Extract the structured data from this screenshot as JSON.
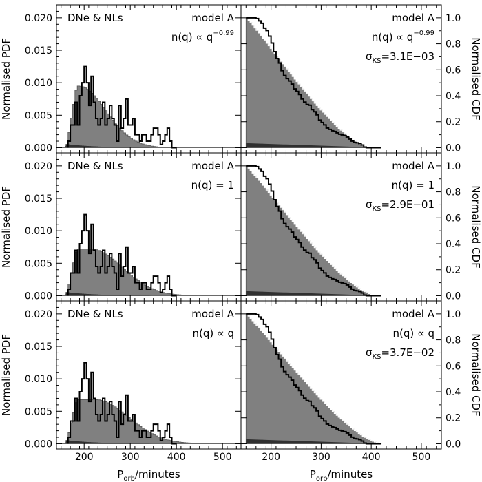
{
  "chart_data": {
    "type": "histogram-grid",
    "x_label_main": "P",
    "x_label_sub": "orb",
    "x_label_rest": "/minutes",
    "xlim": [
      140,
      540
    ],
    "x_ticks": [
      "200",
      "300",
      "400",
      "500"
    ],
    "x_tick_values": [
      200,
      300,
      400,
      500
    ],
    "pdf_ylabel": "Normalised PDF",
    "pdf_ylim": [
      -0.0008,
      0.022
    ],
    "pdf_ticks": [
      "0.000",
      "0.005",
      "0.010",
      "0.015",
      "0.020"
    ],
    "pdf_tick_values": [
      0.0,
      0.005,
      0.01,
      0.015,
      0.02
    ],
    "cdf_ylabel": "Normalised CDF",
    "cdf_ylim": [
      -0.04,
      1.1
    ],
    "cdf_ticks": [
      "0.0",
      "0.2",
      "0.4",
      "0.6",
      "0.8",
      "1.0"
    ],
    "cdf_tick_values": [
      0.0,
      0.2,
      0.4,
      0.6,
      0.8,
      1.0
    ],
    "sample_label": "DNe & NLs",
    "sigma_symbol": "σ",
    "sigma_sub": "KS",
    "observed_pdf": {
      "edges_start": 165,
      "bin_width": 5,
      "values": [
        0.001,
        0.0035,
        0.0035,
        0.007,
        0.0035,
        0.008,
        0.01,
        0.0125,
        0.01,
        0.0065,
        0.011,
        0.007,
        0.0045,
        0.0035,
        0.0045,
        0.007,
        0.0035,
        0.0045,
        0.0065,
        0.0045,
        0.0035,
        0.001,
        0.0065,
        0.003,
        0.0045,
        0.0075,
        0.0035,
        0.0035,
        0.0045,
        0.002,
        0.002,
        0.001,
        0.002,
        0.002,
        0.001,
        0.001,
        0.002,
        0.003,
        0.003,
        0.002,
        0.0005,
        0.001,
        0.002,
        0.003,
        0.001,
        0.0,
        0.0
      ]
    },
    "rows": [
      {
        "model": "model A",
        "nq_text": "n(q) ∝ q",
        "nq_exp": "−0.99",
        "sigma_value": "=3.1E−03",
        "pdf_peak": 0.0095,
        "pdf_center": 188,
        "pdf_width": 95,
        "cdf_model_shift": -12,
        "cdf_obs_shift": 0
      },
      {
        "model": "model A",
        "nq_text": "n(q) = 1",
        "nq_exp": "",
        "sigma_value": "=2.9E−01",
        "pdf_peak": 0.0072,
        "pdf_center": 215,
        "pdf_width": 110,
        "cdf_model_shift": 0,
        "cdf_obs_shift": 0
      },
      {
        "model": "model A",
        "nq_text": "n(q) ∝ q",
        "nq_exp": "",
        "sigma_value": "=3.7E−02",
        "pdf_peak": 0.0068,
        "pdf_center": 225,
        "pdf_width": 115,
        "cdf_model_shift": 10,
        "cdf_obs_shift": 0
      }
    ]
  }
}
